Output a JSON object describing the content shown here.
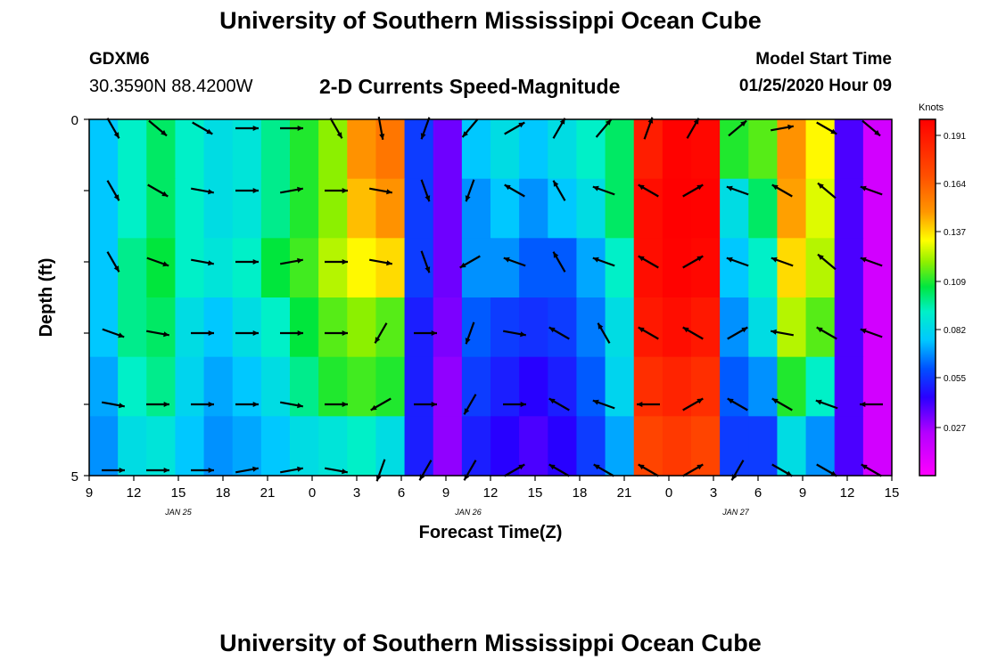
{
  "header": {
    "title": "University of Southern Mississippi Ocean Cube",
    "station_id": "GDXM6",
    "station_coords": "30.3590N 88.4200W",
    "chart_title": "2-D Currents Speed-Magnitude",
    "model_start_label": "Model Start Time",
    "model_start_value": "01/25/2020 Hour 09"
  },
  "footer": {
    "title": "University of Southern Mississippi Ocean Cube"
  },
  "chart_data": {
    "type": "heatmap",
    "title": "2-D Currents Speed-Magnitude",
    "xlabel": "Forecast Time(Z)",
    "ylabel": "Depth (ft)",
    "x_tick_labels": [
      "9",
      "12",
      "15",
      "18",
      "21",
      "0",
      "3",
      "6",
      "9",
      "12",
      "15",
      "18",
      "21",
      "0",
      "3",
      "6",
      "9",
      "12",
      "15"
    ],
    "x_date_labels": [
      {
        "label": "JAN 25",
        "at_tick": 2
      },
      {
        "label": "JAN 26",
        "at_tick": 8.5
      },
      {
        "label": "JAN 27",
        "at_tick": 14.5
      }
    ],
    "y_tick_labels": [
      "0",
      "5"
    ],
    "ylim": [
      0,
      5
    ],
    "colorbar": {
      "unit": "Knots",
      "tick_labels": [
        "0.191",
        "0.164",
        "0.137",
        "0.109",
        "0.082",
        "0.055",
        "0.027"
      ],
      "range": [
        0,
        0.2
      ]
    },
    "depth_levels_ft": [
      0,
      1,
      2,
      3,
      4,
      5
    ],
    "time_columns_hours_since_start": [
      0,
      2,
      4,
      6,
      8,
      10,
      12,
      14,
      16,
      18,
      20,
      22,
      24,
      26,
      28,
      30,
      32,
      34,
      36,
      38,
      40,
      42,
      44,
      46,
      48,
      50,
      52,
      54
    ],
    "speed_knots": [
      [
        0.065,
        0.075,
        0.08,
        0.075,
        0.07,
        0.072,
        0.078,
        0.085,
        0.095,
        0.13,
        0.14,
        0.05,
        0.03,
        0.065,
        0.07,
        0.065,
        0.07,
        0.075,
        0.08,
        0.178,
        0.19,
        0.188,
        0.085,
        0.09,
        0.13,
        0.11,
        0.035,
        0.012
      ],
      [
        0.065,
        0.075,
        0.08,
        0.075,
        0.07,
        0.072,
        0.078,
        0.085,
        0.095,
        0.12,
        0.13,
        0.05,
        0.03,
        0.06,
        0.065,
        0.06,
        0.065,
        0.07,
        0.08,
        0.185,
        0.192,
        0.19,
        0.07,
        0.08,
        0.125,
        0.105,
        0.035,
        0.012
      ],
      [
        0.065,
        0.078,
        0.082,
        0.075,
        0.072,
        0.075,
        0.082,
        0.088,
        0.1,
        0.11,
        0.115,
        0.05,
        0.03,
        0.06,
        0.06,
        0.055,
        0.055,
        0.062,
        0.075,
        0.185,
        0.19,
        0.188,
        0.065,
        0.075,
        0.115,
        0.1,
        0.035,
        0.012
      ],
      [
        0.065,
        0.078,
        0.08,
        0.07,
        0.065,
        0.07,
        0.075,
        0.082,
        0.09,
        0.095,
        0.09,
        0.045,
        0.028,
        0.055,
        0.05,
        0.048,
        0.05,
        0.058,
        0.07,
        0.18,
        0.185,
        0.18,
        0.06,
        0.07,
        0.1,
        0.09,
        0.035,
        0.012
      ],
      [
        0.062,
        0.075,
        0.078,
        0.068,
        0.062,
        0.065,
        0.07,
        0.078,
        0.085,
        0.088,
        0.085,
        0.045,
        0.025,
        0.05,
        0.045,
        0.04,
        0.045,
        0.055,
        0.068,
        0.17,
        0.175,
        0.17,
        0.055,
        0.06,
        0.085,
        0.075,
        0.035,
        0.012
      ],
      [
        0.06,
        0.07,
        0.072,
        0.065,
        0.06,
        0.062,
        0.065,
        0.07,
        0.072,
        0.075,
        0.07,
        0.045,
        0.025,
        0.045,
        0.04,
        0.035,
        0.04,
        0.05,
        0.062,
        0.16,
        0.165,
        0.16,
        0.05,
        0.05,
        0.07,
        0.06,
        0.035,
        0.012
      ]
    ],
    "direction_deg_to": [
      [
        150,
        130,
        120,
        90,
        90,
        150,
        170,
        200,
        220,
        60,
        30,
        40,
        20,
        30,
        50,
        80,
        120,
        130
      ],
      [
        150,
        120,
        100,
        90,
        80,
        90,
        100,
        160,
        200,
        300,
        330,
        290,
        300,
        60,
        290,
        300,
        310,
        290
      ],
      [
        150,
        110,
        100,
        90,
        80,
        90,
        100,
        160,
        240,
        290,
        330,
        290,
        300,
        60,
        290,
        290,
        310,
        290
      ],
      [
        110,
        100,
        90,
        90,
        90,
        90,
        210,
        90,
        200,
        100,
        300,
        330,
        300,
        300,
        60,
        280,
        300,
        290
      ],
      [
        100,
        90,
        90,
        90,
        100,
        90,
        240,
        90,
        210,
        90,
        300,
        290,
        270,
        60,
        300,
        300,
        290,
        270
      ],
      [
        90,
        90,
        90,
        80,
        80,
        100,
        200,
        210,
        210,
        60,
        300,
        300,
        300,
        60,
        210,
        120,
        120,
        300
      ]
    ]
  },
  "colors": {
    "vector": "#000000",
    "frame": "#000000",
    "background": "#ffffff"
  }
}
